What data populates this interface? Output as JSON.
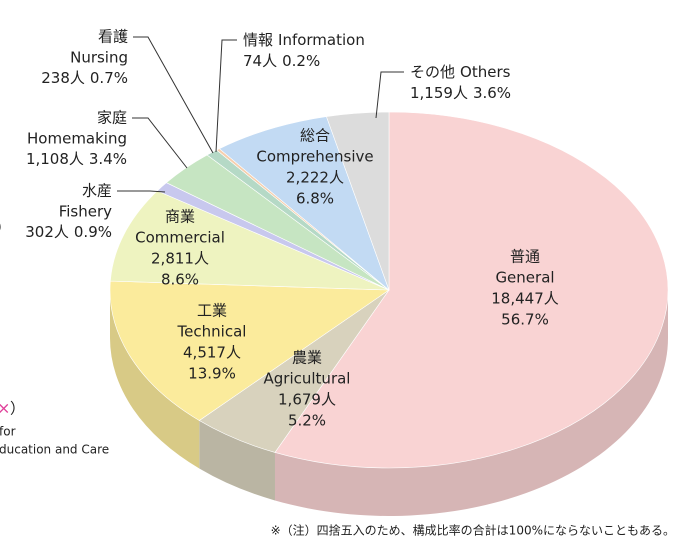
{
  "chart_data": {
    "type": "pie",
    "names_ja": [
      "普通",
      "農業",
      "工業",
      "商業",
      "水産",
      "家庭",
      "看護",
      "情報",
      "総合",
      "その他"
    ],
    "names_en": [
      "General",
      "Agricultural",
      "Technical",
      "Commercial",
      "Fishery",
      "Homemaking",
      "Nursing",
      "Information",
      "Comprehensive",
      "Others"
    ],
    "values": [
      56.7,
      5.2,
      13.9,
      8.6,
      0.9,
      3.4,
      0.7,
      0.2,
      6.8,
      3.6
    ],
    "value_labels": [
      "56.7%",
      "5.2%",
      "13.9%",
      "8.6%",
      "0.9%",
      "3.4%",
      "0.7%",
      "0.2%",
      "6.8%",
      "3.6%"
    ],
    "counts": [
      18447,
      1679,
      4517,
      2811,
      302,
      1108,
      238,
      74,
      2222,
      1159
    ],
    "count_labels": [
      "18,447人",
      "1,679人",
      "4,517人",
      "2,811人",
      "302人",
      "1,108人",
      "238人",
      "74人",
      "2,222人",
      "1,159人"
    ],
    "colors": [
      "#f9d3d3",
      "#d8d2bd",
      "#fbeb9c",
      "#eef3c0",
      "#c8c8ee",
      "#c6e5c2",
      "#b5d9c6",
      "#f6cfae",
      "#c2daf3",
      "#dcdcdc"
    ],
    "note": "※（注）四捨五入のため、構成比率の合計は100%にならないこともある。",
    "side_fragments": [
      "）",
      "×",
      "）",
      "for",
      "ducation and Care"
    ]
  }
}
